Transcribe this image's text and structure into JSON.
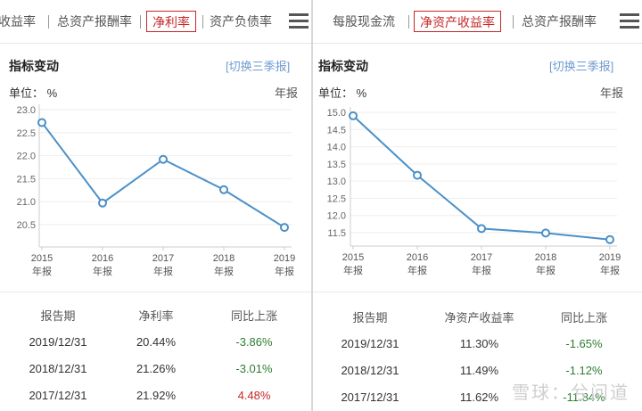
{
  "left": {
    "tabs": [
      "收益率",
      "总资产报酬率",
      "净利率",
      "资产负债率"
    ],
    "active_tab": "净利率",
    "section_title": "指标变动",
    "switch_label": "[切换三季报]",
    "unit_label": "单位： %",
    "period_label": "年报",
    "chart_data": {
      "type": "line",
      "x": [
        "2015",
        "2016",
        "2017",
        "2018",
        "2019"
      ],
      "x_sub": [
        "年报",
        "年报",
        "年报",
        "年报",
        "年报"
      ],
      "values": [
        22.72,
        20.97,
        21.92,
        21.26,
        20.44
      ],
      "ylim": [
        20.5,
        23.0
      ],
      "yticks": [
        "23.0",
        "22.5",
        "22.0",
        "21.5",
        "21.0",
        "20.5"
      ],
      "color": "#4a90c8"
    },
    "table": {
      "headers": [
        "报告期",
        "净利率",
        "同比上涨"
      ],
      "rows": [
        {
          "period": "2019/12/31",
          "value": "20.44%",
          "change": "-3.86%",
          "dir": "down"
        },
        {
          "period": "2018/12/31",
          "value": "21.26%",
          "change": "-3.01%",
          "dir": "down"
        },
        {
          "period": "2017/12/31",
          "value": "21.92%",
          "change": "4.48%",
          "dir": "up"
        }
      ]
    }
  },
  "right": {
    "tabs": [
      "每股现金流",
      "净资产收益率",
      "总资产报酬率"
    ],
    "active_tab": "净资产收益率",
    "section_title": "指标变动",
    "switch_label": "[切换三季报]",
    "unit_label": "单位： %",
    "period_label": "年报",
    "chart_data": {
      "type": "line",
      "x": [
        "2015",
        "2016",
        "2017",
        "2018",
        "2019"
      ],
      "x_sub": [
        "年报",
        "年报",
        "年报",
        "年报",
        "年报"
      ],
      "values": [
        14.9,
        13.17,
        11.62,
        11.49,
        11.3
      ],
      "ylim": [
        11.5,
        15.0
      ],
      "yticks": [
        "15.0",
        "14.5",
        "14.0",
        "13.5",
        "13.0",
        "12.5",
        "12.0",
        "11.5"
      ],
      "color": "#4a90c8"
    },
    "table": {
      "headers": [
        "报告期",
        "净资产收益率",
        "同比上涨"
      ],
      "rows": [
        {
          "period": "2019/12/31",
          "value": "11.30%",
          "change": "-1.65%",
          "dir": "down"
        },
        {
          "period": "2018/12/31",
          "value": "11.49%",
          "change": "-1.12%",
          "dir": "down"
        },
        {
          "period": "2017/12/31",
          "value": "11.62%",
          "change": "-11.84%",
          "dir": "down"
        }
      ]
    }
  },
  "watermark": "雪球：兮问道"
}
